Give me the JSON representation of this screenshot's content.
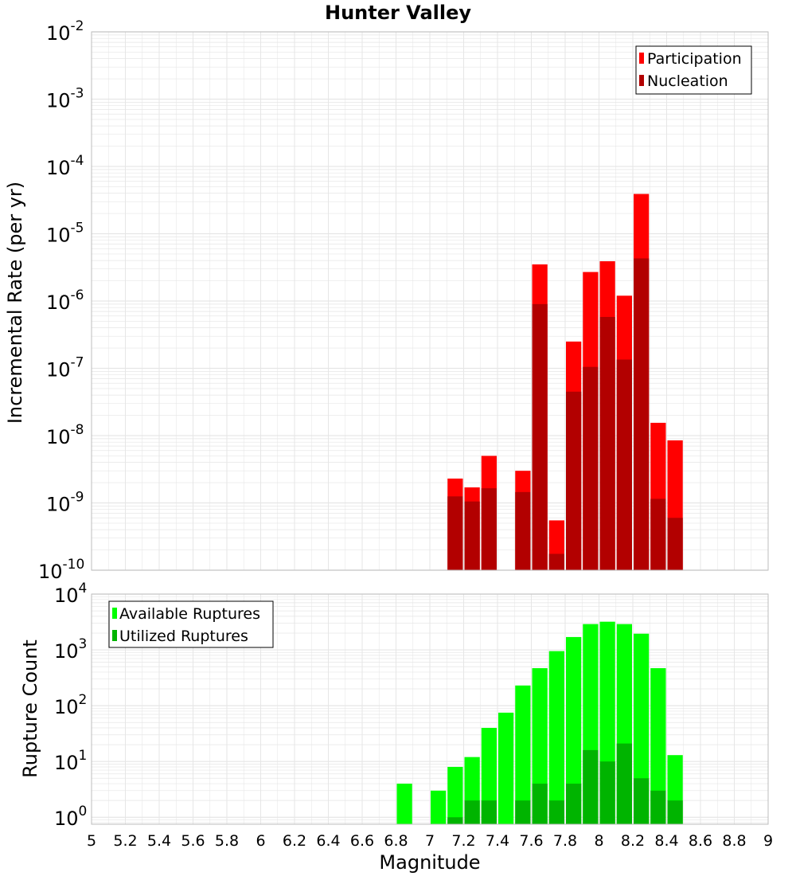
{
  "title": "Hunter Valley",
  "colors": {
    "participation": "#ff0000",
    "nucleation": "#b20000",
    "available": "#00ff00",
    "utilized": "#00b400",
    "grid": "#e6e6e6",
    "frame": "#bcbcbc"
  },
  "chart_data": [
    {
      "type": "bar",
      "scale": "log",
      "ylabel": "Incremental Rate (per yr)",
      "xlabel": "",
      "xlim": [
        5,
        9
      ],
      "ylim": [
        1e-10,
        0.01
      ],
      "y_tick_exponents": [
        "-10",
        "-9",
        "-8",
        "-7",
        "-6",
        "-5",
        "-4",
        "-3",
        "-2"
      ],
      "grid": true,
      "legend_position": "top-right",
      "x": [
        7.15,
        7.25,
        7.35,
        7.55,
        7.65,
        7.75,
        7.85,
        7.95,
        8.05,
        8.15,
        8.25,
        8.35,
        8.45
      ],
      "series": [
        {
          "name": "Participation",
          "values": [
            2.3e-09,
            1.7e-09,
            5e-09,
            3e-09,
            3.5e-06,
            5.5e-10,
            2.5e-07,
            2.7e-06,
            3.9e-06,
            1.2e-06,
            3.9e-05,
            1.55e-08,
            8.5e-09
          ]
        },
        {
          "name": "Nucleation",
          "values": [
            1.25e-09,
            1.05e-09,
            1.65e-09,
            1.45e-09,
            9e-07,
            1.75e-10,
            4.5e-08,
            1.05e-07,
            5.8e-07,
            1.35e-07,
            4.3e-06,
            1.15e-09,
            6e-10
          ]
        }
      ]
    },
    {
      "type": "bar",
      "scale": "log",
      "ylabel": "Rupture Count",
      "xlabel": "Magnitude",
      "xlim": [
        5,
        9
      ],
      "ylim": [
        0.75,
        10000
      ],
      "y_tick_exponents": [
        "0",
        "1",
        "2",
        "3",
        "4"
      ],
      "grid": true,
      "legend_position": "top-left",
      "x_ticks": [
        "5",
        "5.2",
        "5.4",
        "5.6",
        "5.8",
        "6",
        "6.2",
        "6.4",
        "6.6",
        "6.8",
        "7",
        "7.2",
        "7.4",
        "7.6",
        "7.8",
        "8",
        "8.2",
        "8.4",
        "8.6",
        "8.8",
        "9"
      ],
      "x": [
        6.85,
        7.05,
        7.15,
        7.25,
        7.35,
        7.45,
        7.55,
        7.65,
        7.75,
        7.85,
        7.95,
        8.05,
        8.15,
        8.25,
        8.35,
        8.45
      ],
      "series": [
        {
          "name": "Available Ruptures",
          "values": [
            4,
            3,
            8,
            12,
            40,
            75,
            230,
            470,
            950,
            1700,
            2900,
            3200,
            2900,
            1950,
            470,
            13
          ]
        },
        {
          "name": "Utilized Ruptures",
          "values": [
            0,
            0,
            1,
            2,
            2,
            0,
            2,
            4,
            2,
            4,
            16,
            10,
            21,
            5,
            3,
            2
          ]
        }
      ]
    }
  ]
}
